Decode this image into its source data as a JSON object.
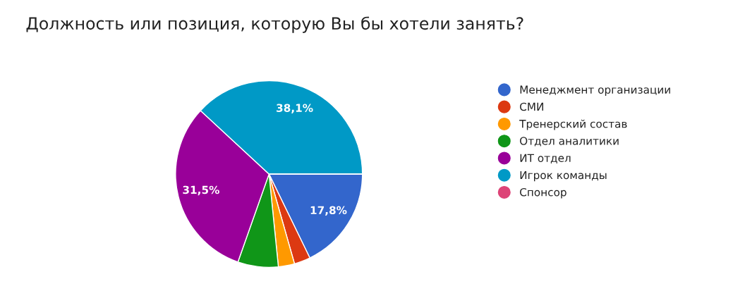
{
  "chart_data": {
    "type": "pie",
    "title": "Должность или позиция, которую Вы бы хотели занять?",
    "categories": [
      "Менеджмент организации",
      "СМИ",
      "Тренерский состав",
      "Отдел аналитики",
      "ИТ отдел",
      "Игрок команды",
      "Спонсор"
    ],
    "values": [
      17.8,
      2.8,
      2.8,
      7.0,
      31.5,
      38.1,
      0
    ],
    "value_labels": [
      "17,8%",
      null,
      null,
      null,
      "31,5%",
      "38,1%",
      null
    ],
    "colors": [
      "#3366cc",
      "#dc3912",
      "#ff9900",
      "#109618",
      "#990099",
      "#0099c6",
      "#dd4477"
    ],
    "legend": "right"
  }
}
